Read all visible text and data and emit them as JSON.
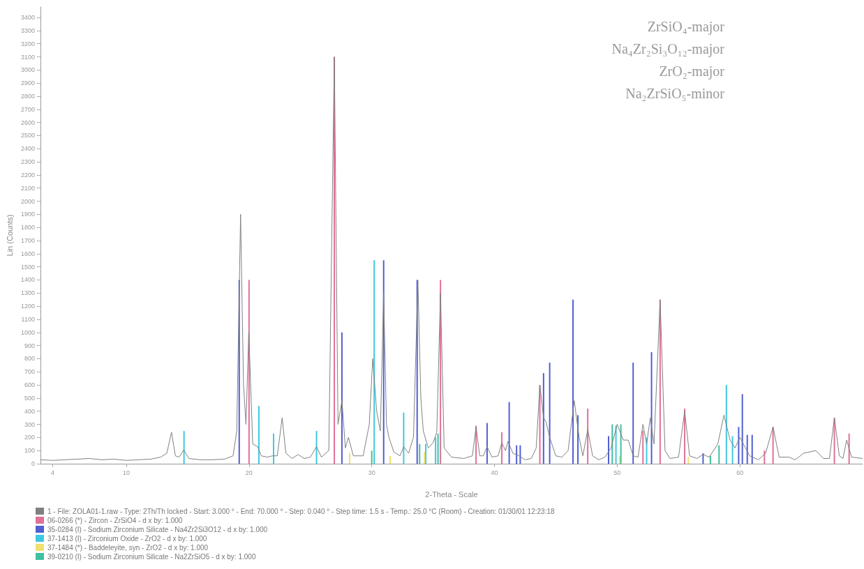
{
  "chart_data": {
    "type": "line",
    "xlabel": "2-Theta - Scale",
    "ylabel": "Lin (Counts)",
    "xlim": [
      3,
      70
    ],
    "xticks": [
      4,
      10,
      20,
      30,
      40,
      50,
      60
    ],
    "ylim": [
      0,
      3480
    ],
    "yticks": [
      0,
      100,
      200,
      300,
      400,
      500,
      600,
      700,
      800,
      900,
      1000,
      1100,
      1200,
      1300,
      1400,
      1500,
      1600,
      1700,
      1800,
      1900,
      2000,
      2100,
      2200,
      2300,
      2400,
      2500,
      2600,
      2700,
      2800,
      2900,
      3000,
      3100,
      3200,
      3300,
      3400
    ],
    "grid": false,
    "legend": "bottom left",
    "marker": "none",
    "annotations": [
      "ZrSiO₄-major",
      "Na₄Zr₂Si₃O₁₂-major",
      "ZrO₂-major",
      "Na₂ZrSiO₅-minor"
    ],
    "series": [
      {
        "name": "1 - File: ZOLA01-1.raw - Type: 2Th/Th locked - Start: 3.000 ° - End: 70.000 ° - Step: 0.040 ° - Step time: 1.5 s - Temp.: 25.0 °C (Room) - Creation: 01/30/01 12:23:18",
        "color": "#808080",
        "x": [
          3,
          4,
          5,
          6,
          7,
          8,
          9,
          10,
          11,
          12,
          12.8,
          13.3,
          13.68,
          14.0,
          14.3,
          14.68,
          15.1,
          16,
          17,
          18,
          18.7,
          19.0,
          19.31,
          19.55,
          19.75,
          19.98,
          20.3,
          20.7,
          21.0,
          21.5,
          21.9,
          22.3,
          22.7,
          23.0,
          23.5,
          24.0,
          24.5,
          25.0,
          25.5,
          25.9,
          26.5,
          26.95,
          27.25,
          27.57,
          27.85,
          28.1,
          28.5,
          29.3,
          29.8,
          30.08,
          30.4,
          30.7,
          30.97,
          31.2,
          31.4,
          31.8,
          32.3,
          32.6,
          33.0,
          33.4,
          33.76,
          34.0,
          34.2,
          34.6,
          35.0,
          35.3,
          35.6,
          35.9,
          36.5,
          37.5,
          38.2,
          38.5,
          38.8,
          39.1,
          39.4,
          39.8,
          40.3,
          40.6,
          40.9,
          41.1,
          41.5,
          42.0,
          42.5,
          43.0,
          43.4,
          43.7,
          44.0,
          44.2,
          44.5,
          45.0,
          45.5,
          46.0,
          46.5,
          46.9,
          47.2,
          47.6,
          48.0,
          48.5,
          49.0,
          49.5,
          50.0,
          50.5,
          50.9,
          51.3,
          51.7,
          52.1,
          52.4,
          52.7,
          53.0,
          53.5,
          53.9,
          54.3,
          55.0,
          55.5,
          55.9,
          56.5,
          57.0,
          57.5,
          58.2,
          58.7,
          59.2,
          59.6,
          60.0,
          60.4,
          60.8,
          61.5,
          62.1,
          62.7,
          63.2,
          64.0,
          64.5,
          65.2,
          66.2,
          66.8,
          67.3,
          67.7,
          68.1,
          68.4,
          68.7,
          69.1,
          70
        ],
        "values": [
          30,
          25,
          30,
          35,
          40,
          30,
          35,
          25,
          30,
          35,
          50,
          80,
          240,
          60,
          50,
          105,
          40,
          30,
          30,
          35,
          60,
          250,
          1900,
          600,
          300,
          1000,
          150,
          130,
          60,
          50,
          60,
          60,
          350,
          80,
          40,
          70,
          40,
          50,
          130,
          50,
          100,
          3100,
          300,
          480,
          120,
          200,
          60,
          60,
          300,
          800,
          400,
          250,
          1300,
          300,
          200,
          90,
          60,
          130,
          80,
          200,
          1400,
          500,
          250,
          120,
          160,
          240,
          1300,
          120,
          50,
          40,
          60,
          280,
          60,
          60,
          130,
          50,
          60,
          160,
          100,
          170,
          80,
          60,
          30,
          40,
          120,
          600,
          350,
          320,
          200,
          60,
          50,
          100,
          480,
          200,
          60,
          260,
          60,
          30,
          50,
          120,
          300,
          180,
          180,
          60,
          50,
          300,
          150,
          350,
          150,
          1250,
          100,
          40,
          50,
          400,
          60,
          40,
          70,
          50,
          150,
          370,
          180,
          120,
          200,
          130,
          60,
          30,
          80,
          280,
          50,
          50,
          30,
          80,
          100,
          40,
          40,
          350,
          60,
          40,
          180,
          50,
          40
        ]
      },
      {
        "type": "bar",
        "name": "06-0266 (*) - Zircon - ZrSiO4 - d x by: 1.000",
        "color": "#e0709a",
        "x": [
          20.0,
          26.95,
          35.6,
          38.5,
          40.6,
          43.7,
          47.6,
          52.1,
          53.5,
          55.5,
          62.0,
          62.7,
          67.7,
          68.9
        ],
        "values": [
          1400,
          3100,
          1400,
          290,
          240,
          600,
          420,
          250,
          1250,
          420,
          100,
          280,
          350,
          230
        ]
      },
      {
        "type": "bar",
        "name": "35-0284 (I) - Sodium Zirconium Silicate - Na4Zr2Si3O12 - d x by: 1.000",
        "color": "#5060d0",
        "x": [
          19.2,
          27.57,
          30.97,
          33.7,
          39.4,
          41.2,
          41.8,
          42.1,
          44.0,
          44.5,
          46.4,
          46.8,
          49.3,
          51.3,
          52.8,
          57.0,
          59.9,
          60.2,
          60.6,
          61.0
        ],
        "values": [
          1400,
          1000,
          1550,
          1400,
          310,
          470,
          140,
          140,
          690,
          770,
          1250,
          370,
          210,
          770,
          850,
          80,
          280,
          530,
          220,
          220
        ]
      },
      {
        "type": "bar",
        "name": "37-1413 (I) - Zirconium Oxide - ZrO2 - d x by: 1.000",
        "color": "#40c8e0",
        "x": [
          14.7,
          20.8,
          22.0,
          25.5,
          30.2,
          32.6,
          34.4,
          35.2,
          49.9,
          52.4,
          58.9,
          59.4
        ],
        "values": [
          250,
          440,
          230,
          250,
          1550,
          390,
          150,
          200,
          290,
          200,
          600,
          210
        ]
      },
      {
        "type": "bar",
        "name": "37-1484 (*) - Baddeleyite, syn - ZrO2 - d x by: 1.000",
        "color": "#f0e070",
        "x": [
          28.2,
          31.5,
          34.3,
          50.2,
          55.8
        ],
        "values": [
          80,
          60,
          90,
          60,
          50
        ]
      },
      {
        "type": "bar",
        "name": "39-0210 (I) - Sodium Zirconium Silicate - Na2ZrSiO5 - d x by: 1.000",
        "color": "#40c0a0",
        "x": [
          30.0,
          33.9,
          35.4,
          49.6,
          50.3,
          57.6,
          58.3
        ],
        "values": [
          100,
          150,
          230,
          300,
          300,
          60,
          140
        ]
      }
    ]
  }
}
